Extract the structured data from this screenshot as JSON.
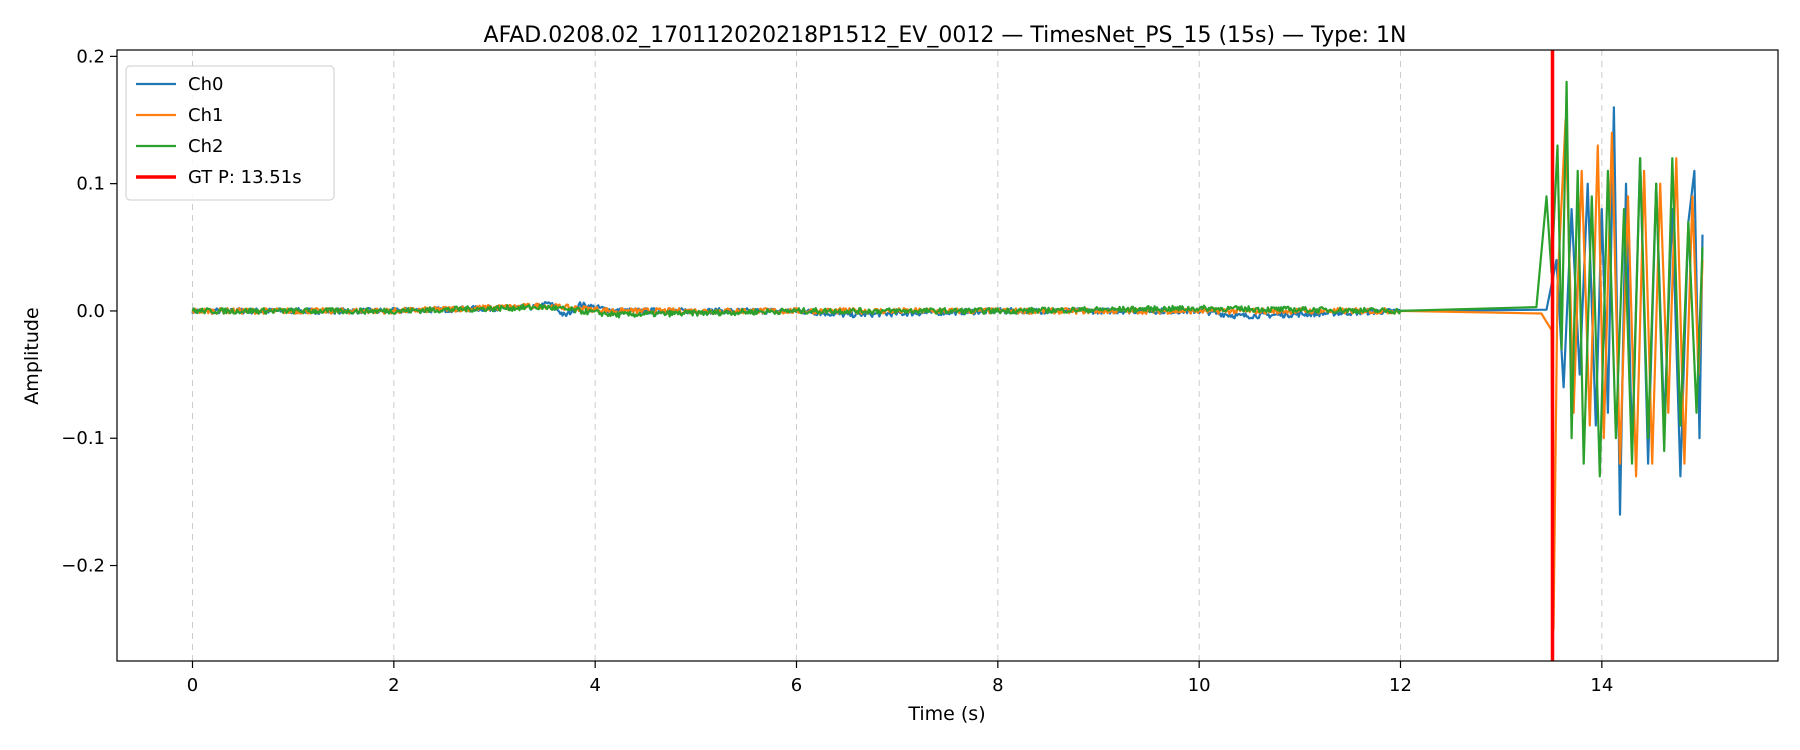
{
  "chart_data": {
    "type": "line",
    "title": "AFAD.0208.02_170112020218P1512_EV_0012 — TimesNet_PS_15 (15s) — Type: 1N",
    "xlabel": "Time (s)",
    "ylabel": "Amplitude",
    "xlim": [
      -0.75,
      15.75
    ],
    "ylim": [
      -0.275,
      0.205
    ],
    "xticks": [
      0,
      2,
      4,
      6,
      8,
      10,
      12,
      14
    ],
    "xtick_labels": [
      "0",
      "2",
      "4",
      "6",
      "8",
      "10",
      "12",
      "14"
    ],
    "yticks": [
      -0.2,
      -0.1,
      0.0,
      0.1,
      0.2
    ],
    "ytick_labels": [
      "−0.2",
      "−0.1",
      "0.0",
      "0.1",
      "0.2"
    ],
    "grid": "vertical-dashed",
    "legend_position": "top-left",
    "series": [
      {
        "name": "Ch0",
        "color": "#1f77b4",
        "x": [
          0.0,
          2.0,
          3.4,
          3.55,
          3.7,
          3.85,
          4.2,
          6.0,
          6.5,
          8.0,
          10.0,
          10.4,
          12.0,
          13.45,
          13.55,
          13.62,
          13.7,
          13.78,
          13.86,
          13.94,
          14.0,
          14.06,
          14.12,
          14.18,
          14.24,
          14.3,
          14.38,
          14.46,
          14.54,
          14.62,
          14.7,
          14.78,
          14.86,
          14.92,
          14.97,
          15.0
        ],
        "y": [
          0.0,
          0.0,
          0.003,
          0.006,
          -0.004,
          0.005,
          0.0,
          0.0,
          -0.003,
          0.0,
          0.0,
          -0.004,
          0.0,
          0.001,
          0.04,
          -0.06,
          0.08,
          -0.05,
          0.1,
          -0.09,
          0.08,
          -0.08,
          0.16,
          -0.16,
          0.1,
          -0.11,
          0.12,
          -0.12,
          0.1,
          -0.09,
          0.08,
          -0.13,
          0.07,
          0.11,
          -0.1,
          0.06
        ]
      },
      {
        "name": "Ch1",
        "color": "#ff7f0e",
        "x": [
          0.0,
          2.0,
          3.5,
          4.2,
          6.0,
          8.0,
          10.0,
          12.0,
          13.4,
          13.5,
          13.52,
          13.56,
          13.64,
          13.72,
          13.8,
          13.88,
          13.96,
          14.02,
          14.1,
          14.18,
          14.26,
          14.34,
          14.42,
          14.5,
          14.58,
          14.66,
          14.74,
          14.82,
          14.9,
          14.96,
          15.0
        ],
        "y": [
          0.0,
          0.0,
          0.004,
          0.0,
          0.0,
          0.0,
          0.0,
          0.0,
          -0.002,
          -0.015,
          -0.25,
          0.02,
          0.15,
          -0.08,
          0.11,
          -0.09,
          0.13,
          -0.1,
          0.14,
          -0.12,
          0.09,
          -0.13,
          0.11,
          -0.12,
          0.1,
          -0.08,
          0.12,
          -0.12,
          0.09,
          -0.05,
          0.04
        ]
      },
      {
        "name": "Ch2",
        "color": "#2ca02c",
        "x": [
          0.0,
          2.0,
          3.5,
          4.2,
          6.0,
          8.0,
          10.0,
          12.0,
          13.35,
          13.45,
          13.5,
          13.56,
          13.6,
          13.65,
          13.7,
          13.76,
          13.82,
          13.9,
          13.98,
          14.06,
          14.14,
          14.22,
          14.3,
          14.38,
          14.46,
          14.54,
          14.62,
          14.7,
          14.78,
          14.86,
          14.94,
          15.0
        ],
        "y": [
          0.0,
          0.0,
          0.003,
          -0.003,
          0.0,
          0.0,
          0.002,
          0.0,
          0.003,
          0.09,
          0.03,
          0.13,
          -0.03,
          0.18,
          -0.1,
          0.11,
          -0.12,
          0.09,
          -0.13,
          0.11,
          -0.1,
          0.08,
          -0.12,
          0.12,
          -0.1,
          0.1,
          -0.11,
          0.12,
          -0.09,
          0.07,
          -0.08,
          0.05
        ]
      }
    ],
    "vlines": [
      {
        "name": "GT P: 13.51s",
        "x": 13.51,
        "color": "#ff0000"
      }
    ]
  }
}
